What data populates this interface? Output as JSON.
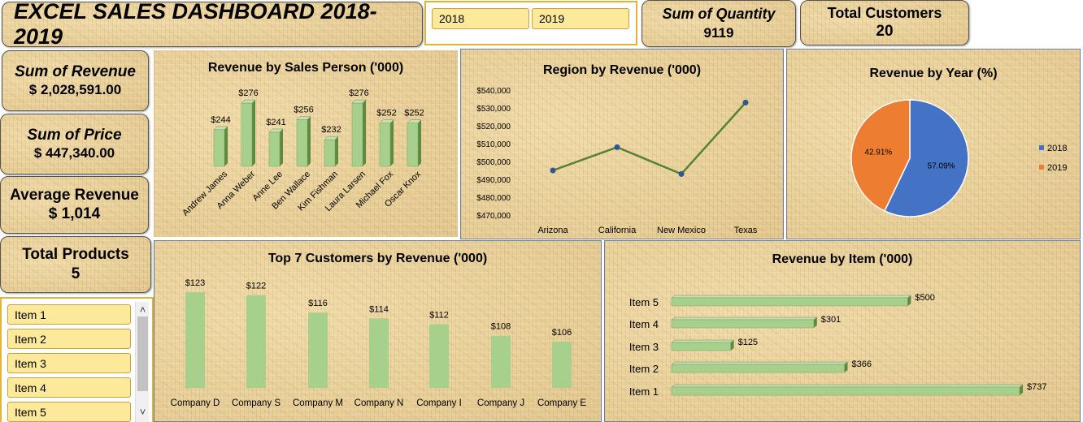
{
  "title": "EXCEL SALES DASHBOARD 2018-2019",
  "year_slicer": {
    "items": [
      "2018",
      "2019"
    ]
  },
  "kpis": {
    "quantity": {
      "label": "Sum of Quantity",
      "value": "9119"
    },
    "customers": {
      "label": "Total Customers",
      "value": "20"
    },
    "revenue": {
      "label": "Sum of Revenue",
      "value": "$ 2,028,591.00"
    },
    "price": {
      "label": "Sum of Price",
      "value": "$ 447,340.00"
    },
    "avg_revenue": {
      "label": "Average Revenue",
      "value": "$ 1,014"
    },
    "products": {
      "label": "Total Products",
      "value": "5"
    }
  },
  "item_slicer": {
    "items": [
      "Item 1",
      "Item 2",
      "Item 3",
      "Item 4",
      "Item 5"
    ],
    "scroll_up": "˄",
    "scroll_down": "˅"
  },
  "colors": {
    "bar_green": "#a8d08d",
    "line_green": "#548235",
    "pie_blue": "#4472c4",
    "pie_orange": "#ed7d31",
    "slicer_fill": "#fde99a",
    "parchment": "#e8cf98"
  },
  "chart_data": [
    {
      "id": "sales_person",
      "type": "bar",
      "title": "Revenue by Sales Person ('000)",
      "categories": [
        "Andrew James",
        "Anna Weber",
        "Anne Lee",
        "Ben Wallace",
        "Kim Fishman",
        "Laura Larsen",
        "Michael Fox",
        "Oscar Knox"
      ],
      "values": [
        244,
        276,
        241,
        256,
        232,
        276,
        252,
        252
      ],
      "data_labels": [
        "$244",
        "$276",
        "$241",
        "$256",
        "$232",
        "$276",
        "$252",
        "$252"
      ],
      "ylim": [
        200,
        280
      ],
      "grid": false
    },
    {
      "id": "region",
      "type": "line",
      "title": "Region by Revenue ('000)",
      "categories": [
        "Arizona",
        "California",
        "New Mexico",
        "Texas"
      ],
      "values": [
        495000,
        508000,
        493000,
        533000
      ],
      "yticks": [
        "$540,000",
        "$530,000",
        "$520,000",
        "$510,000",
        "$500,000",
        "$490,000",
        "$480,000",
        "$470,000"
      ],
      "ylim": [
        470000,
        540000
      ],
      "grid": false
    },
    {
      "id": "year_pie",
      "type": "pie",
      "title": "Revenue by Year (%)",
      "categories": [
        "2018",
        "2019"
      ],
      "values": [
        57.09,
        42.91
      ],
      "data_labels": [
        "57.09%",
        "42.91%"
      ],
      "legend": "right"
    },
    {
      "id": "customers",
      "type": "bar",
      "title": "Top 7 Customers by Revenue ('000)",
      "categories": [
        "Company D",
        "Company S",
        "Company M",
        "Company N",
        "Company I",
        "Company J",
        "Company E"
      ],
      "values": [
        123,
        122,
        116,
        114,
        112,
        108,
        106
      ],
      "data_labels": [
        "$123",
        "$122",
        "$116",
        "$114",
        "$112",
        "$108",
        "$106"
      ],
      "ylim": [
        90,
        125
      ],
      "grid": false
    },
    {
      "id": "items",
      "type": "bar",
      "orientation": "horizontal",
      "title": "Revenue by Item ('000)",
      "categories": [
        "Item 5",
        "Item 4",
        "Item 3",
        "Item 2",
        "Item 1"
      ],
      "values": [
        500,
        301,
        125,
        366,
        737
      ],
      "data_labels": [
        "$500",
        "$301",
        "$125",
        "$366",
        "$737"
      ],
      "xlim": [
        0,
        737
      ],
      "grid": false
    }
  ]
}
